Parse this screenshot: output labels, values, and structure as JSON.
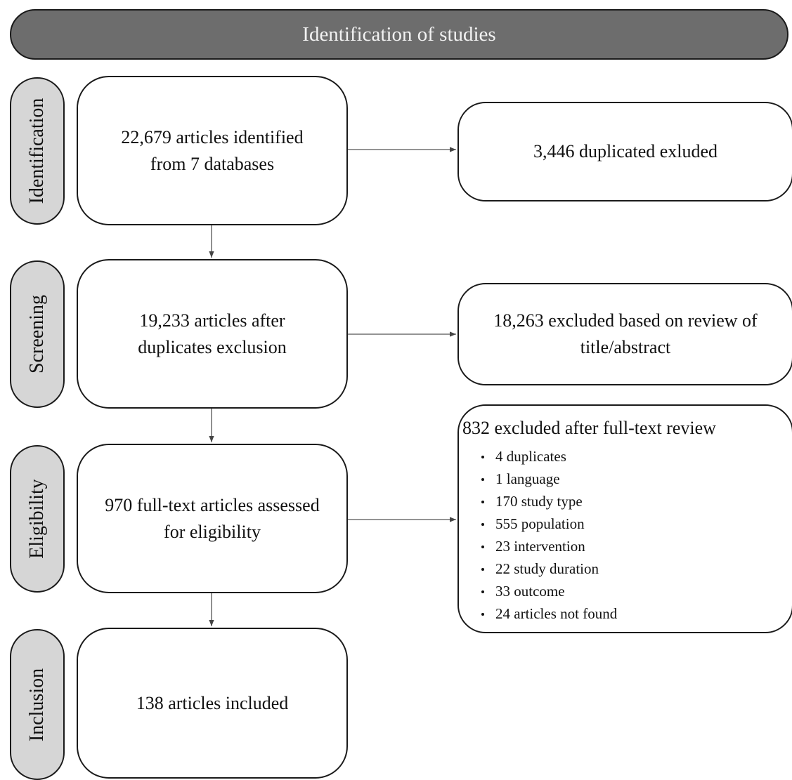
{
  "header": {
    "title": "Identification of studies"
  },
  "phases": {
    "identification": "Identification",
    "screening": "Screening",
    "eligibility": "Eligibility",
    "inclusion": "Inclusion"
  },
  "main_boxes": {
    "identified_line1": "22,679 articles identified",
    "identified_line2": "from 7 databases",
    "screened_line1": "19,233 articles after",
    "screened_line2": "duplicates exclusion",
    "eligible_line1": "970 full-text articles assessed",
    "eligible_line2": "for eligibility",
    "included": "138 articles included"
  },
  "side_boxes": {
    "duplicates": "3,446 duplicated exluded",
    "title_abstract_line1": "18,263 excluded based on review of",
    "title_abstract_line2": "title/abstract",
    "fulltext_title": "832 excluded after full-text review",
    "fulltext_reasons": [
      "4 duplicates",
      "1 language",
      "170 study type",
      "555 population",
      "23 intervention",
      "22 study duration",
      "33 outcome",
      "24 articles not found"
    ]
  },
  "colors": {
    "header_fill": "#6d6d6d",
    "phase_fill": "#d6d6d6",
    "border": "#1a1a1a"
  }
}
